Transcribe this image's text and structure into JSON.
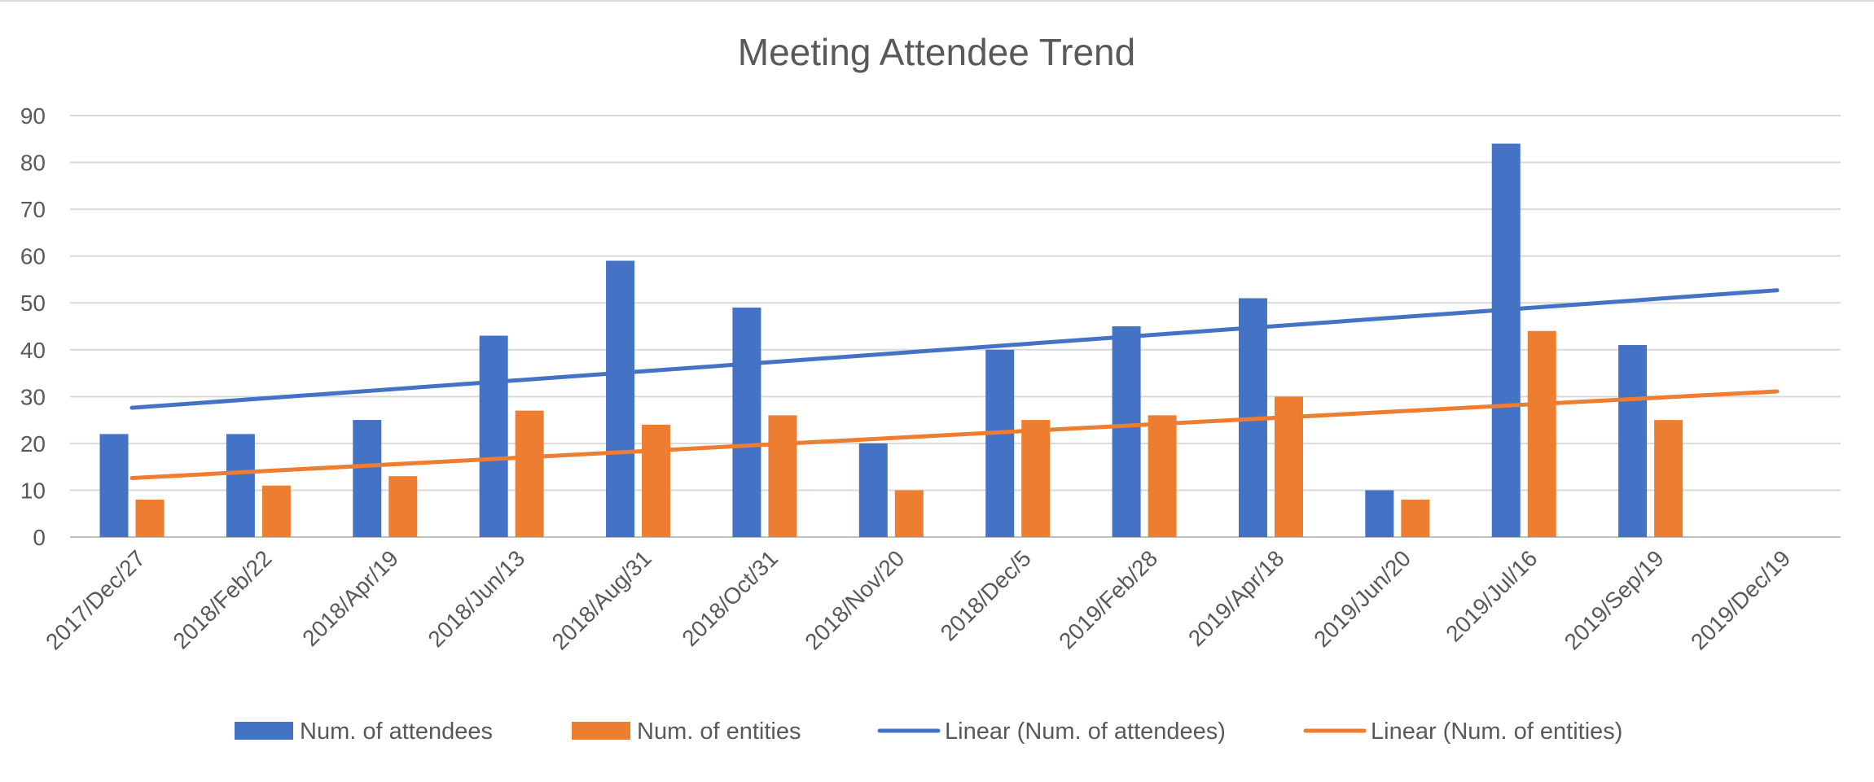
{
  "chart_data": {
    "type": "bar",
    "title": "Meeting Attendee Trend",
    "categories": [
      "2017/Dec/27",
      "2018/Feb/22",
      "2018/Apr/19",
      "2018/Jun/13",
      "2018/Aug/31",
      "2018/Oct/31",
      "2018/Nov/20",
      "2018/Dec/5",
      "2019/Feb/28",
      "2019/Apr/18",
      "2019/Jun/20",
      "2019/Jul/16",
      "2019/Sep/19",
      "2019/Dec/19"
    ],
    "series": [
      {
        "name": "Num. of attendees",
        "color": "#4472C4",
        "values": [
          22,
          22,
          25,
          43,
          59,
          49,
          20,
          40,
          45,
          51,
          10,
          84,
          41,
          null
        ]
      },
      {
        "name": "Num. of entities",
        "color": "#ED7D31",
        "values": [
          8,
          11,
          13,
          27,
          24,
          26,
          10,
          25,
          26,
          30,
          8,
          44,
          25,
          null
        ]
      }
    ],
    "trendlines": [
      {
        "name": "Linear (Num. of attendees)",
        "color": "#4472C4",
        "start": 27.6,
        "end": 52.7
      },
      {
        "name": "Linear (Num. of entities)",
        "color": "#ED7D31",
        "start": 12.6,
        "end": 31.1
      }
    ],
    "ylim": [
      0,
      90
    ],
    "yticks": [
      0,
      10,
      20,
      30,
      40,
      50,
      60,
      70,
      80,
      90
    ],
    "xlabel": "",
    "ylabel": "",
    "grid": true,
    "legend": "bottom"
  }
}
